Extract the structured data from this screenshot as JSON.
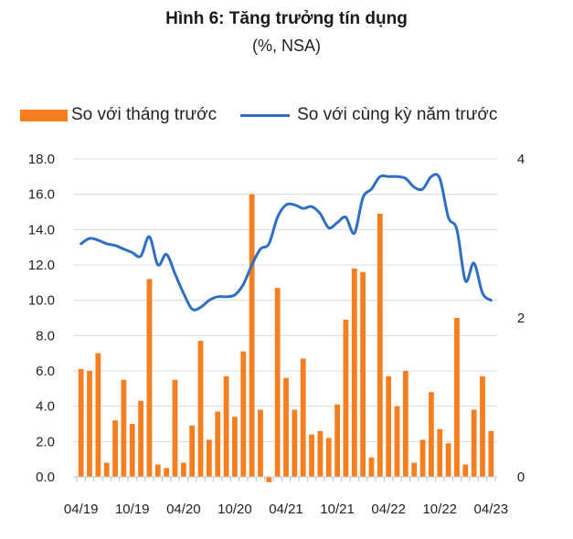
{
  "chart_data": {
    "type": "bar",
    "title": "Hình 6: Tăng trưởng tín dụng",
    "subtitle": "(%, NSA)",
    "legend": [
      {
        "name": "So với tháng trước",
        "kind": "bar",
        "color": "#f57e20"
      },
      {
        "name": "So với cùng kỳ năm trước",
        "kind": "line",
        "color": "#2e6fc4"
      }
    ],
    "legend_position": "top",
    "y_left": {
      "min": 0,
      "max": 18,
      "step": 2,
      "format": "one-decimal",
      "ticks": [
        "0.0",
        "2.0",
        "4.0",
        "6.0",
        "8.0",
        "10.0",
        "12.0",
        "14.0",
        "16.0",
        "18.0"
      ]
    },
    "y_right": {
      "min": 0,
      "max": 4,
      "ticks": [
        "0",
        "2",
        "4"
      ]
    },
    "grid": "horizontal",
    "x_labels": [
      "04/19",
      "10/19",
      "04/20",
      "10/20",
      "04/21",
      "10/21",
      "04/22",
      "10/22",
      "04/23"
    ],
    "x_label_every": 6,
    "series": [
      {
        "name": "So với tháng trước",
        "kind": "bar",
        "axis": "left",
        "values": [
          6.1,
          6.0,
          7.0,
          0.8,
          3.2,
          5.5,
          3.0,
          4.3,
          11.2,
          0.7,
          0.5,
          5.5,
          0.8,
          2.9,
          7.7,
          2.1,
          3.7,
          5.7,
          3.4,
          7.1,
          16.0,
          3.8,
          -0.3,
          10.7,
          5.6,
          3.8,
          6.7,
          2.4,
          2.6,
          2.2,
          4.1,
          8.9,
          11.8,
          11.6,
          1.1,
          14.9,
          5.7,
          4.0,
          6.0,
          0.8,
          2.1,
          4.8,
          2.7,
          1.9,
          9.0,
          0.7,
          3.8,
          5.7,
          2.6
        ]
      },
      {
        "name": "So với cùng kỳ năm trước",
        "kind": "line",
        "axis": "right",
        "values": [
          13.2,
          13.5,
          13.4,
          13.2,
          13.1,
          12.9,
          12.7,
          12.5,
          13.6,
          12.0,
          12.6,
          11.5,
          10.4,
          9.5,
          9.6,
          10.0,
          10.2,
          10.2,
          10.3,
          10.9,
          12.0,
          12.9,
          13.2,
          14.7,
          15.4,
          15.4,
          15.2,
          15.3,
          14.9,
          14.1,
          14.4,
          14.7,
          13.8,
          15.8,
          16.3,
          17.0,
          17.0,
          17.0,
          16.9,
          16.4,
          16.3,
          17.0,
          16.9,
          14.7,
          14.0,
          11.1,
          12.1,
          10.4,
          10.0
        ]
      }
    ]
  }
}
